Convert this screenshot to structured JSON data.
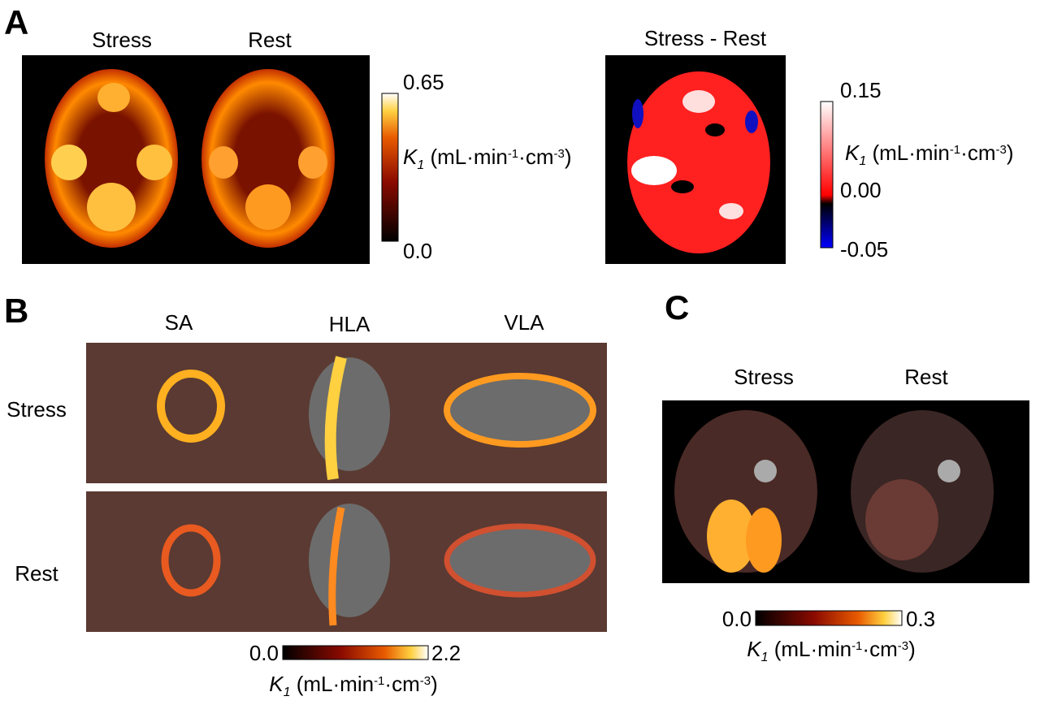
{
  "panel_a": {
    "label": "A",
    "columns": [
      "Stress",
      "Rest"
    ],
    "diff_title": "Stress - Rest",
    "colorbar": {
      "max": "0.65",
      "min": "0.0"
    },
    "diff_colorbar": {
      "max": "0.15",
      "mid": "0.00",
      "min": "-0.05"
    },
    "unit": [
      "K",
      "1",
      " (mL·min",
      "-1",
      "·cm",
      "-3",
      ")"
    ]
  },
  "panel_b": {
    "label": "B",
    "columns": [
      "SA",
      "HLA",
      "VLA"
    ],
    "rows": [
      "Stress",
      "Rest"
    ],
    "colorbar": {
      "min": "0.0",
      "max": "2.2"
    },
    "unit": [
      "K",
      "1",
      " (mL·min",
      "-1",
      "·cm",
      "-3",
      ")"
    ]
  },
  "panel_c": {
    "label": "C",
    "columns": [
      "Stress",
      "Rest"
    ],
    "colorbar": {
      "min": "0.0",
      "max": "0.3"
    },
    "unit": [
      "K",
      "1",
      " (mL·min",
      "-1",
      "·cm",
      "-3",
      ")"
    ]
  }
}
